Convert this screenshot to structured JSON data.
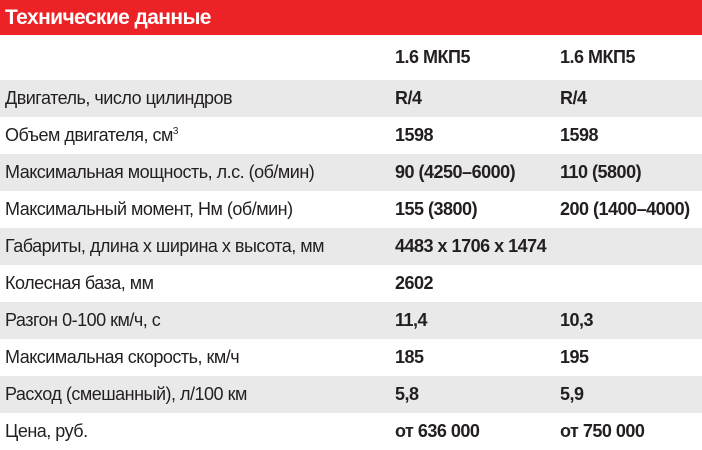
{
  "title": "Технические данные",
  "columns": [
    "1.6 МКП5",
    "1.6 МКП5"
  ],
  "rows": [
    {
      "label": "Двигатель, число цилиндров",
      "v1": "R/4",
      "v2": "R/4"
    },
    {
      "label": "Объем двигателя, см",
      "sup": "3",
      "v1": "1598",
      "v2": "1598"
    },
    {
      "label": "Максимальная мощность, л.с. (об/мин)",
      "v1": "90 (4250–6000)",
      "v2": "110 (5800)"
    },
    {
      "label": "Максимальный момент, Нм (об/мин)",
      "v1": "155 (3800)",
      "v2": "200 (1400–4000)"
    },
    {
      "label": "Габариты, длина х ширина х высота, мм",
      "v1": "4483 x 1706 x 1474",
      "v2": ""
    },
    {
      "label": "Колесная база, мм",
      "v1": "2602",
      "v2": ""
    },
    {
      "label": "Разгон 0-100 км/ч, с",
      "v1": "11,4",
      "v2": "10,3"
    },
    {
      "label": "Максимальная скорость, км/ч",
      "v1": "185",
      "v2": "195"
    },
    {
      "label": "Расход (смешанный), л/100 км",
      "v1": "5,8",
      "v2": "5,9"
    },
    {
      "label": "Цена, руб.",
      "v1": "от 636 000",
      "v2": "от 750 000"
    }
  ],
  "colors": {
    "accent": "#ec2227",
    "stripe": "#e9e9e9"
  }
}
